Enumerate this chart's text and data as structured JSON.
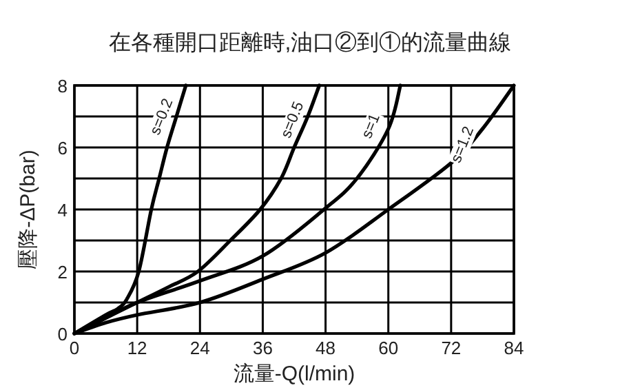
{
  "chart_data": {
    "type": "line",
    "title": "在各種開口距離時,油口②到①的流量曲線",
    "xlabel": "流量-Q(l/min)",
    "ylabel": "壓降-ΔP(bar)",
    "xlim": [
      0,
      84
    ],
    "xticks": [
      0,
      12,
      24,
      36,
      48,
      60,
      72,
      84
    ],
    "ylim": [
      0,
      8
    ],
    "yticks": [
      0,
      {
        "value": 1,
        "label": null
      },
      2,
      {
        "value": 3,
        "label": null
      },
      4,
      {
        "value": 5,
        "label": null
      },
      6,
      {
        "value": 7,
        "label": null
      },
      8
    ],
    "grid": true,
    "marker": "none",
    "line_style": "solid",
    "series": [
      {
        "color": "#000000",
        "x": [
          0,
          6,
          8.3,
          10,
          12.3,
          14.7,
          16.2,
          17.7,
          19.5,
          21.3
        ],
        "values": [
          0,
          0.6,
          0.8,
          1.1,
          2,
          4,
          5,
          6,
          7,
          8
        ]
      },
      {
        "color": "#000000",
        "x": [
          0,
          6,
          12,
          18,
          23.6,
          29.8,
          35.5,
          39.5,
          42,
          44.6,
          46.8
        ],
        "values": [
          0,
          0.5,
          1,
          1.5,
          2,
          3,
          4,
          5,
          6,
          7,
          8
        ]
      },
      {
        "color": "#000000",
        "x": [
          0,
          6,
          12,
          24,
          36,
          47.7,
          54,
          60,
          62.3
        ],
        "values": [
          0,
          0.5,
          1,
          1.7,
          2.5,
          4,
          5,
          6.6,
          8
        ]
      },
      {
        "color": "#000000",
        "x": [
          0,
          6,
          12,
          24,
          36,
          48,
          60,
          72,
          78,
          84
        ],
        "values": [
          0,
          0.35,
          0.6,
          1,
          1.75,
          2.6,
          4,
          5.5,
          6.6,
          8
        ]
      }
    ],
    "annotations": [
      {
        "text": "s=0.2",
        "x": 16.5,
        "y": 7
      },
      {
        "text": "s=0.5",
        "x": 41.5,
        "y": 6.9
      },
      {
        "text": "s=1",
        "x": 56.5,
        "y": 6.7
      },
      {
        "text": "s=1.2",
        "x": 74,
        "y": 6.1
      }
    ]
  }
}
